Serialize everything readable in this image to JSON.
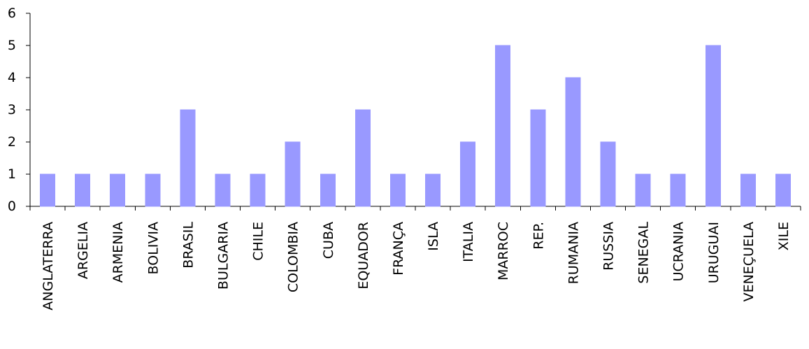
{
  "chart_data": {
    "type": "bar",
    "title": "",
    "xlabel": "",
    "ylabel": "",
    "ylim": [
      0,
      6
    ],
    "yticks": [
      0,
      1,
      2,
      3,
      4,
      5,
      6
    ],
    "grid": false,
    "legend": "none",
    "bar_color": "#9999ff",
    "categories": [
      "ANGLATERRA",
      "ARGELIA",
      "ARMENIA",
      "BOLIVIA",
      "BRASIL",
      "BULGARIA",
      "CHILE",
      "COLOMBIA",
      "CUBA",
      "EQUADOR",
      "FRANÇA",
      "ISLA",
      "ITALIA",
      "MARROC",
      "REP.",
      "RUMANIA",
      "RUSSIA",
      "SENEGAL",
      "UCRANIA",
      "URUGUAI",
      "VENEÇUELA",
      "XILE"
    ],
    "values": [
      1,
      1,
      1,
      1,
      3,
      1,
      1,
      2,
      1,
      3,
      1,
      1,
      2,
      5,
      3,
      4,
      2,
      1,
      1,
      5,
      1,
      1
    ]
  }
}
